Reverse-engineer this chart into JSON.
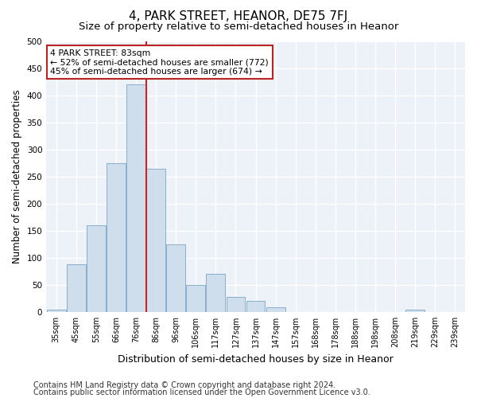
{
  "title": "4, PARK STREET, HEANOR, DE75 7FJ",
  "subtitle": "Size of property relative to semi-detached houses in Heanor",
  "xlabel": "Distribution of semi-detached houses by size in Heanor",
  "ylabel": "Number of semi-detached properties",
  "categories": [
    "35sqm",
    "45sqm",
    "55sqm",
    "66sqm",
    "76sqm",
    "86sqm",
    "96sqm",
    "106sqm",
    "117sqm",
    "127sqm",
    "137sqm",
    "147sqm",
    "157sqm",
    "168sqm",
    "178sqm",
    "188sqm",
    "198sqm",
    "208sqm",
    "219sqm",
    "229sqm",
    "239sqm"
  ],
  "values": [
    5,
    88,
    160,
    275,
    420,
    265,
    125,
    50,
    70,
    28,
    20,
    8,
    0,
    0,
    0,
    0,
    0,
    0,
    5,
    0,
    0
  ],
  "bar_color": "#cfdeed",
  "bar_edge_color": "#8aaecb",
  "redline_x": 4.5,
  "annotation_text": "4 PARK STREET: 83sqm\n← 52% of semi-detached houses are smaller (772)\n45% of semi-detached houses are larger (674) →",
  "annotation_box_color": "#ffffff",
  "annotation_box_edge": "#bb2222",
  "ylim": [
    0,
    500
  ],
  "yticks": [
    0,
    50,
    100,
    150,
    200,
    250,
    300,
    350,
    400,
    450,
    500
  ],
  "footer1": "Contains HM Land Registry data © Crown copyright and database right 2024.",
  "footer2": "Contains public sector information licensed under the Open Government Licence v3.0.",
  "background_color": "#edf2f9",
  "grid_color": "#ffffff",
  "title_fontsize": 11,
  "subtitle_fontsize": 9.5,
  "tick_fontsize": 7,
  "ylabel_fontsize": 8.5,
  "xlabel_fontsize": 9,
  "footer_fontsize": 7
}
